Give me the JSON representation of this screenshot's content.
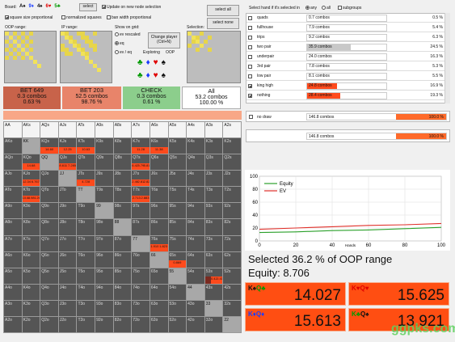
{
  "board": {
    "label": "Board:",
    "cards": [
      {
        "t": "A♠",
        "c": "#111111"
      },
      {
        "t": "9♦",
        "c": "#1a3cff"
      },
      {
        "t": "4♠",
        "c": "#111111"
      },
      {
        "t": "6♥",
        "c": "#e00000"
      },
      {
        "t": "5♣",
        "c": "#009900"
      }
    ]
  },
  "toolbar": {
    "select_label": "select",
    "update_label": "Update on new node selection",
    "square_prop": "square size proportional",
    "normalized": "normalized squares",
    "ban_width": "ban width proportional",
    "select_all": "select all",
    "select_none": "select none"
  },
  "panels": {
    "oop_range": "OOP range:",
    "ip_range": "IP range:",
    "show_on_grid": "Show on grid:",
    "selection": "Selection:",
    "ev_rescaled": "ev rescaled",
    "eq": "eq",
    "ev_eq": "ev / eq",
    "change_player": "Change player (Ctrl+N)",
    "exploring": "Exploring",
    "oop": "OOP"
  },
  "suits": [
    {
      "t": "♣",
      "c": "#009900"
    },
    {
      "t": "♦",
      "c": "#1a3cff"
    },
    {
      "t": "♥",
      "c": "#e00000"
    },
    {
      "t": "♠",
      "c": "#111111"
    }
  ],
  "summary": [
    {
      "name": "BET 649",
      "combos": "0.3 combos",
      "pct": "0.63 %",
      "bg": "#c8634a"
    },
    {
      "name": "BET 203",
      "combos": "52.5 combos",
      "pct": "98.76 %",
      "bg": "#e8846a"
    },
    {
      "name": "CHECK",
      "combos": "0.3 combos",
      "pct": "0.61 %",
      "bg": "#8cce8c"
    },
    {
      "name": "All",
      "combos": "53.2 combos",
      "pct": "100.00 %",
      "bg": "#ffffff"
    }
  ],
  "grid": [
    [
      "AA",
      "AKs",
      "AQs",
      "AJs",
      "ATs",
      "A9s",
      "A8s",
      "A7s",
      "A6s",
      "A5s",
      "A4s",
      "A3s",
      "A2s"
    ],
    [
      "AKo",
      "KK",
      "KQs",
      "KJs",
      "KTs",
      "K9s",
      "K8s",
      "K7s",
      "K6s",
      "K5s",
      "K4s",
      "K3s",
      "K2s"
    ],
    [
      "AQo",
      "KQo",
      "QQ",
      "QJs",
      "QTs",
      "Q9s",
      "Q8s",
      "Q7s",
      "Q6s",
      "Q5s",
      "Q4s",
      "Q3s",
      "Q2s"
    ],
    [
      "AJo",
      "KJo",
      "QJo",
      "JJ",
      "JTs",
      "J9s",
      "J8s",
      "J7s",
      "J6s",
      "J5s",
      "J4s",
      "J3s",
      "J2s"
    ],
    [
      "ATo",
      "KTo",
      "QTo",
      "JTo",
      "TT",
      "T9s",
      "T8s",
      "T7s",
      "T6s",
      "T5s",
      "T4s",
      "T3s",
      "T2s"
    ],
    [
      "A9o",
      "K9o",
      "Q9o",
      "J9o",
      "T9o",
      "99",
      "98s",
      "97s",
      "96s",
      "95s",
      "94s",
      "93s",
      "92s"
    ],
    [
      "A8o",
      "K8o",
      "Q8o",
      "J8o",
      "T8o",
      "98o",
      "88",
      "87s",
      "86s",
      "85s",
      "84s",
      "83s",
      "82s"
    ],
    [
      "A7o",
      "K7o",
      "Q7o",
      "J7o",
      "T7o",
      "97o",
      "87o",
      "77",
      "76s",
      "75s",
      "74s",
      "73s",
      "72s"
    ],
    [
      "A6o",
      "K6o",
      "Q6o",
      "J6o",
      "T6o",
      "96o",
      "86o",
      "76o",
      "66",
      "65s",
      "64s",
      "63s",
      "62s"
    ],
    [
      "A5o",
      "K5o",
      "Q5o",
      "J5o",
      "T5o",
      "95o",
      "85o",
      "75o",
      "65o",
      "55",
      "54s",
      "53s",
      "52s"
    ],
    [
      "A4o",
      "K4o",
      "Q4o",
      "J4o",
      "T4o",
      "94o",
      "84o",
      "74o",
      "64o",
      "54o",
      "44",
      "43s",
      "42s"
    ],
    [
      "A3o",
      "K3o",
      "Q3o",
      "J3o",
      "T3o",
      "93o",
      "83o",
      "73o",
      "63o",
      "53o",
      "43o",
      "33",
      "32s"
    ],
    [
      "A2o",
      "K2o",
      "Q2o",
      "J2o",
      "T2o",
      "92o",
      "82o",
      "72o",
      "62o",
      "52o",
      "42o",
      "32o",
      "22"
    ]
  ],
  "cellvals": [
    {
      "r": 1,
      "c": 2,
      "v": [
        "14.60"
      ]
    },
    {
      "r": 1,
      "c": 3,
      "v": [
        "12.25"
      ]
    },
    {
      "r": 1,
      "c": 4,
      "v": [
        "10.63"
      ]
    },
    {
      "r": 1,
      "c": 7,
      "v": [
        "11.28"
      ]
    },
    {
      "r": 1,
      "c": 8,
      "v": [
        "11.38"
      ]
    },
    {
      "r": 2,
      "c": 1,
      "v": [
        "14.68"
      ]
    },
    {
      "r": 2,
      "c": 3,
      "v": [
        "8.611",
        "7.285"
      ]
    },
    {
      "r": 2,
      "c": 7,
      "v": [
        "6.423",
        "5.799",
        "5.818"
      ]
    },
    {
      "r": 3,
      "c": 1,
      "v": [
        "12.34",
        "6.767"
      ]
    },
    {
      "r": 3,
      "c": 4,
      "v": [
        "4.728"
      ]
    },
    {
      "r": 3,
      "c": 7,
      "v": [
        "2.466",
        "2.814",
        "2.823"
      ]
    },
    {
      "r": 4,
      "c": 1,
      "v": [
        "10.69",
        "8.989",
        "4.269"
      ]
    },
    {
      "r": 4,
      "c": 7,
      "v": [
        "2.713",
        "2.883"
      ]
    },
    {
      "r": 7,
      "c": 8,
      "v": [
        "1.910",
        "1.823"
      ]
    },
    {
      "r": 8,
      "c": 9,
      "v": [
        "0.869"
      ]
    },
    {
      "r": 9,
      "c": 11,
      "v": [
        "",
        "0.421",
        "0.418"
      ]
    }
  ],
  "hands_header": {
    "label": "Select hand if it's selected in",
    "any": "any",
    "all": "all",
    "subgroups": "subgroups"
  },
  "hands": [
    {
      "name": "quads",
      "combos": "0.7 combos",
      "pct": "0.5 %",
      "checked": false,
      "bar": 0
    },
    {
      "name": "fullhouse",
      "combos": "7.9 combos",
      "pct": "5.4 %",
      "checked": false,
      "bar": 0
    },
    {
      "name": "trips",
      "combos": "9.2 combos",
      "pct": "6.3 %",
      "checked": false,
      "bar": 0
    },
    {
      "name": "two pair",
      "combos": "35.9 combos",
      "pct": "24.5 %",
      "checked": false,
      "bar": 0.55,
      "bc": "#c8c8c8"
    },
    {
      "name": "underpair",
      "combos": "24.0 combos",
      "pct": "16.3 %",
      "checked": false,
      "bar": 0
    },
    {
      "name": "3rd pair",
      "combos": "7.8 combos",
      "pct": "5.3 %",
      "checked": false,
      "bar": 0
    },
    {
      "name": "low pair",
      "combos": "8.1 combos",
      "pct": "5.5 %",
      "checked": false,
      "bar": 0
    },
    {
      "name": "king high",
      "combos": "24.8 combos",
      "pct": "16.9 %",
      "checked": true,
      "bar": 0.38,
      "bc": "#ff4a1c"
    },
    {
      "name": "nothing",
      "combos": "28.4 combos",
      "pct": "19.3 %",
      "checked": true,
      "bar": 0.42,
      "bc": "#ff4a1c"
    }
  ],
  "nodraw": {
    "name": "no draw",
    "combos": "146.8 combos",
    "pct": "100.0 %"
  },
  "total": {
    "combos": "146.8 combos",
    "pct": "100.0 %"
  },
  "chart_data": {
    "type": "line",
    "ylim": [
      0,
      100
    ],
    "xlim": [
      0,
      100
    ],
    "yticks": [
      "100",
      "80",
      "60",
      "40",
      "20",
      "0"
    ],
    "xticks": [
      "0",
      "20",
      "40",
      "60",
      "80",
      "100"
    ],
    "xlabel": "Hands",
    "series": [
      {
        "name": "Equity",
        "color": "#2aa02a",
        "points": [
          [
            0,
            13
          ],
          [
            20,
            14
          ],
          [
            40,
            16
          ],
          [
            60,
            17
          ],
          [
            80,
            19
          ],
          [
            100,
            21
          ]
        ]
      },
      {
        "name": "EV",
        "color": "#e0302a",
        "points": [
          [
            0,
            18
          ],
          [
            20,
            20
          ],
          [
            40,
            22
          ],
          [
            60,
            24
          ],
          [
            80,
            25
          ],
          [
            100,
            27
          ]
        ]
      }
    ]
  },
  "selected_text": "Selected 36.2 % of OOP range",
  "equity_text": "Equity: 8.706",
  "combos": [
    {
      "cards": [
        {
          "t": "K♠",
          "c": "#111111"
        },
        {
          "t": "Q♣",
          "c": "#009900"
        }
      ],
      "val": "14.027"
    },
    {
      "cards": [
        {
          "t": "K♥",
          "c": "#e00000"
        },
        {
          "t": "Q♥",
          "c": "#e00000"
        }
      ],
      "val": "15.625"
    },
    {
      "cards": [
        {
          "t": "K♦",
          "c": "#1a3cff"
        },
        {
          "t": "Q♦",
          "c": "#1a3cff"
        }
      ],
      "val": "15.613"
    },
    {
      "cards": [
        {
          "t": "K♣",
          "c": "#009900"
        },
        {
          "t": "Q♠",
          "c": "#111111"
        }
      ],
      "val": "13.921"
    }
  ],
  "watermark": "ggpks.com"
}
